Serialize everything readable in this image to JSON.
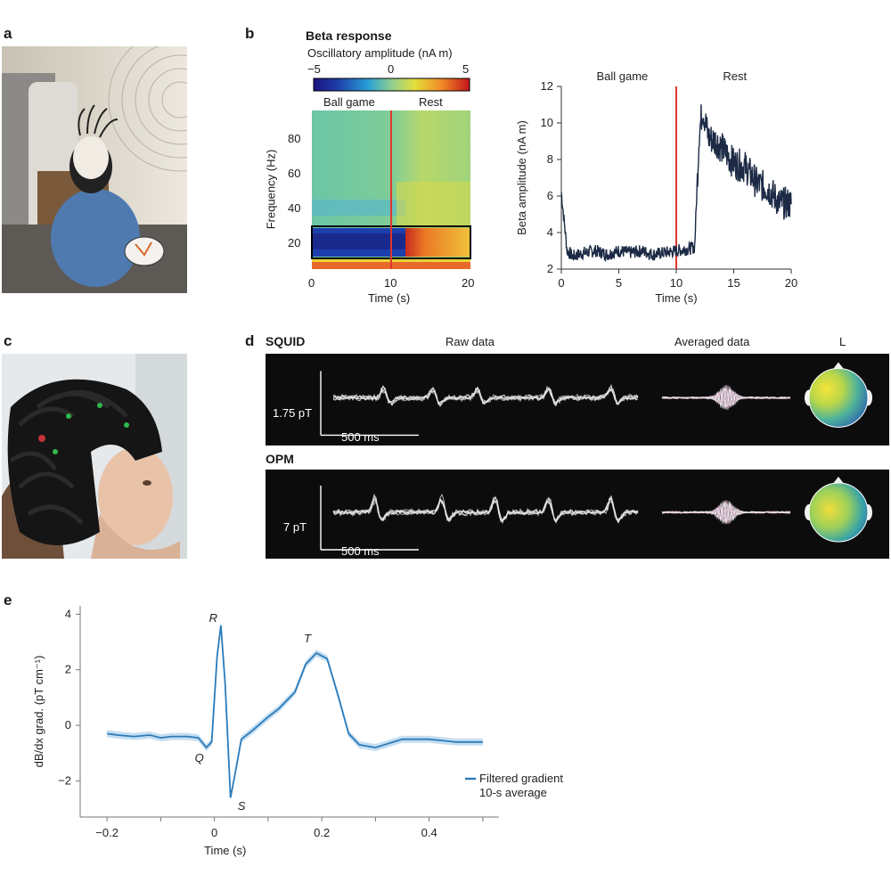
{
  "panels": {
    "a": "a",
    "b": "b",
    "c": "c",
    "d": "d",
    "e": "e"
  },
  "b": {
    "title": "Beta response",
    "colorbar_label": "Oscillatory amplitude (nA m)",
    "colorbar_ticks": [
      "−5",
      "0",
      "5"
    ],
    "spectrogram": {
      "annot_left": "Ball game",
      "annot_right": "Rest",
      "ylabel": "Frequency (Hz)",
      "xlabel": "Time (s)",
      "yticks": [
        "20",
        "40",
        "60",
        "80"
      ],
      "xticks": [
        "0",
        "10",
        "20"
      ]
    },
    "colors": {
      "event_line": "#e0352b",
      "box": "#000000"
    }
  },
  "chart_data": [
    {
      "type": "line",
      "annotations": [
        "Ball game",
        "Rest"
      ],
      "xlabel": "Time (s)",
      "ylabel": "Beta amplitude (nA m)",
      "xlim": [
        0,
        20
      ],
      "ylim": [
        2,
        12
      ],
      "xticks": [
        0,
        5,
        10,
        15,
        20
      ],
      "yticks": [
        2,
        4,
        6,
        8,
        10,
        12
      ],
      "event_x": 10,
      "series": [
        {
          "x": [
            0,
            0.5,
            1,
            2,
            3,
            4,
            5,
            6,
            7,
            8,
            9,
            10,
            11,
            11.6,
            12,
            12.3,
            12.8,
            13.5,
            14,
            15,
            16,
            17,
            18,
            19,
            20
          ],
          "values": [
            6.2,
            3.0,
            2.7,
            2.9,
            3.0,
            2.8,
            3.0,
            2.9,
            3.0,
            2.8,
            2.9,
            3.0,
            3.1,
            3.2,
            9.5,
            10.8,
            9.2,
            9.0,
            8.6,
            7.8,
            7.6,
            6.7,
            6.4,
            5.6,
            5.6
          ]
        }
      ],
      "color": "#1c2a45"
    },
    {
      "type": "line",
      "xlabel": "Time (s)",
      "ylabel": "dB/dx grad. (pT cm⁻¹)",
      "xlim": [
        -0.2,
        0.5
      ],
      "ylim": [
        -3,
        4
      ],
      "xticks": [
        -0.2,
        0,
        0.2,
        0.4
      ],
      "yticks": [
        -2,
        0,
        2,
        4
      ],
      "annotations": [
        {
          "label": "R",
          "x": 0.01,
          "y": 3.6
        },
        {
          "label": "Q",
          "x": -0.01,
          "y": -0.6
        },
        {
          "label": "S",
          "x": 0.03,
          "y": -2.6
        },
        {
          "label": "T",
          "x": 0.19,
          "y": 2.6
        }
      ],
      "series": [
        {
          "name": "Filtered gradient 10-s average",
          "x": [
            -0.2,
            -0.18,
            -0.15,
            -0.12,
            -0.1,
            -0.08,
            -0.05,
            -0.03,
            -0.015,
            -0.005,
            0.005,
            0.012,
            0.02,
            0.03,
            0.04,
            0.05,
            0.07,
            0.1,
            0.12,
            0.15,
            0.17,
            0.19,
            0.21,
            0.23,
            0.25,
            0.27,
            0.3,
            0.35,
            0.4,
            0.45,
            0.5
          ],
          "values": [
            -0.3,
            -0.35,
            -0.4,
            -0.35,
            -0.45,
            -0.4,
            -0.4,
            -0.45,
            -0.8,
            -0.6,
            2.5,
            3.6,
            1.5,
            -2.6,
            -1.6,
            -0.5,
            -0.2,
            0.3,
            0.6,
            1.2,
            2.2,
            2.6,
            2.4,
            1.1,
            -0.3,
            -0.7,
            -0.8,
            -0.5,
            -0.5,
            -0.6,
            -0.6
          ]
        }
      ],
      "color": "#2b7bba"
    }
  ],
  "d": {
    "squid_label": "SQUID",
    "opm_label": "OPM",
    "raw_label": "Raw data",
    "avg_label": "Averaged data",
    "topo_label": "L",
    "squid_scale": "1.75 pT",
    "opm_scale": "7 pT",
    "time_scale": "500 ms"
  }
}
